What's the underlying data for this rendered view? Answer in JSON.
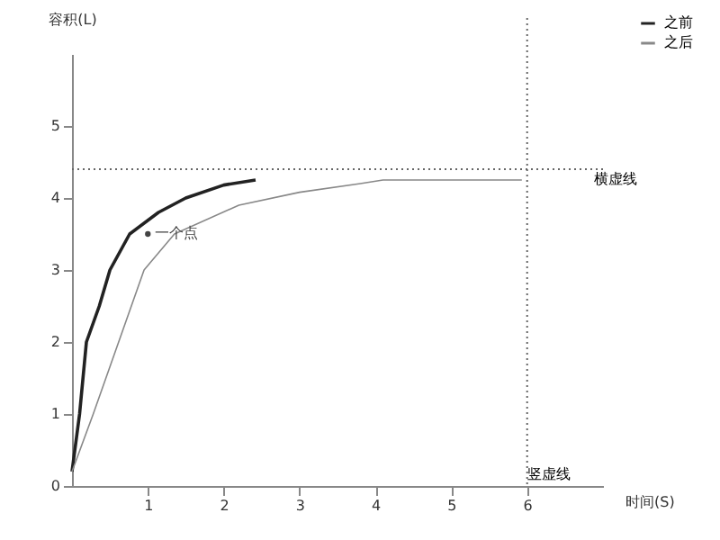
{
  "chart_data": {
    "type": "line",
    "xlabel": "时间(S)",
    "ylabel": "容积(L)",
    "xlim": [
      0,
      7
    ],
    "ylim": [
      0,
      6
    ],
    "xticks": [
      1,
      2,
      3,
      4,
      5,
      6
    ],
    "yticks": [
      0,
      1,
      2,
      3,
      4,
      5
    ],
    "grid": false,
    "legend": "top right",
    "series": [
      {
        "name": "之前",
        "color": "#222222",
        "x": [
          0,
          0.1,
          0.19,
          0.36,
          0.5,
          0.76,
          1.14,
          1.5,
          2.0,
          2.42
        ],
        "values": [
          0.2,
          1.0,
          2.0,
          2.5,
          3.0,
          3.5,
          3.8,
          4.0,
          4.18,
          4.25
        ]
      },
      {
        "name": "之后",
        "color": "#888888",
        "x": [
          0,
          0.28,
          0.95,
          1.35,
          2.2,
          3.0,
          3.8,
          4.1,
          5.93
        ],
        "values": [
          0.2,
          1.0,
          3.0,
          3.5,
          3.9,
          4.08,
          4.2,
          4.25,
          4.25
        ]
      },
      {
        "type": "scatter",
        "name": "一个点",
        "color": "#444444",
        "x": [
          1
        ],
        "values": [
          3.5
        ]
      }
    ],
    "ref_lines": [
      {
        "axis": "y",
        "value": 4.4,
        "label": "横虚线",
        "line_style": "dotted"
      },
      {
        "axis": "x",
        "value": 6,
        "label": "竖虚线",
        "line_style": "dotted"
      }
    ]
  }
}
